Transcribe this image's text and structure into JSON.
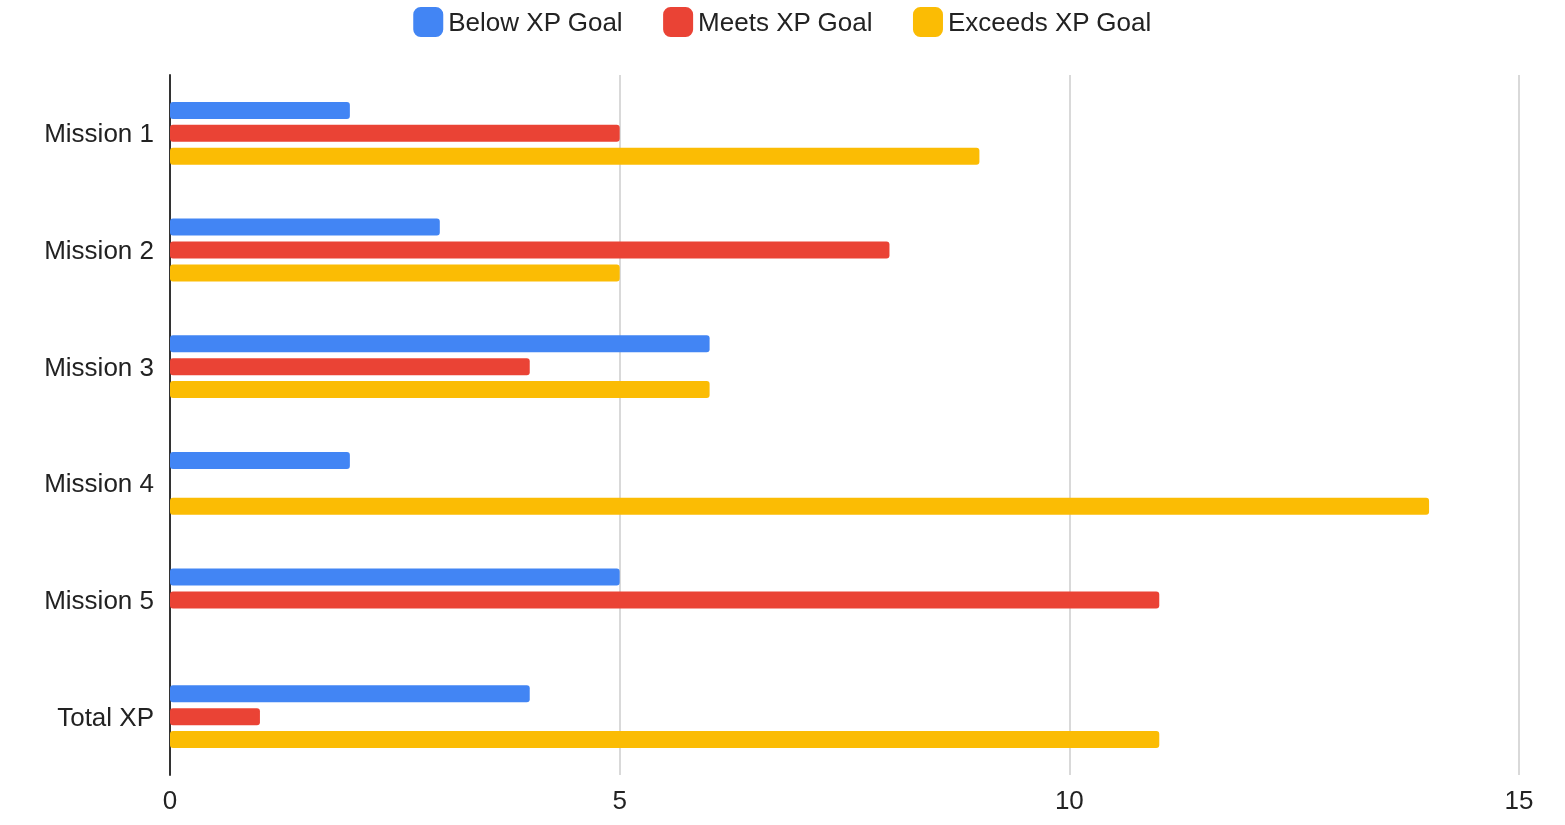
{
  "chart_data": {
    "type": "bar",
    "orientation": "horizontal",
    "categories": [
      "Mission 1",
      "Mission 2",
      "Mission 3",
      "Mission 4",
      "Mission 5",
      "Total XP"
    ],
    "series": [
      {
        "name": "Below XP Goal",
        "color": "#4285f4",
        "values": [
          2,
          3,
          6,
          2,
          5,
          4
        ]
      },
      {
        "name": "Meets XP Goal",
        "color": "#ea4335",
        "values": [
          5,
          8,
          4,
          null,
          11,
          1
        ]
      },
      {
        "name": "Exceeds XP Goal",
        "color": "#fbbc04",
        "values": [
          9,
          5,
          6,
          14,
          null,
          11
        ]
      }
    ],
    "xlim": [
      0,
      15
    ],
    "xticks": [
      0,
      5,
      10,
      15
    ],
    "grid": "x",
    "legend": "top"
  }
}
